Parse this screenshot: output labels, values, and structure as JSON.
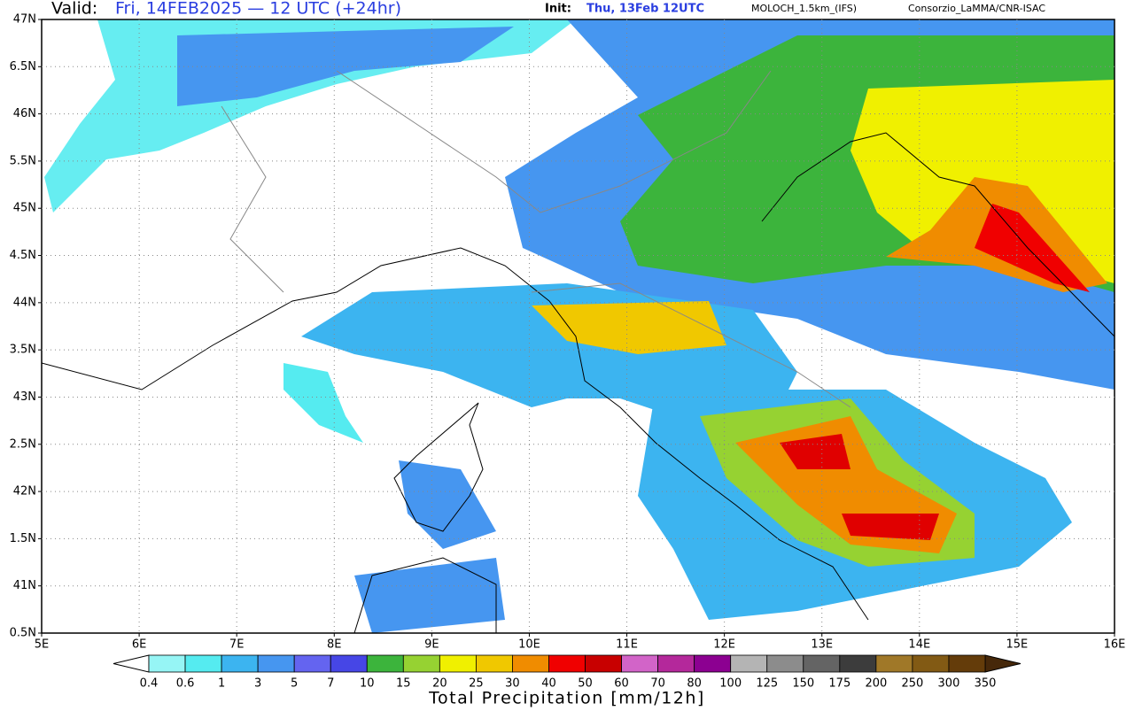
{
  "header": {
    "valid_label": "Valid:",
    "valid_time": "Fri, 14FEB2025 — 12 UTC (+24hr)",
    "init_label": "Init:",
    "init_time": "Thu, 13Feb 12UTC",
    "model": "MOLOCH_1.5km_(IFS)",
    "credit": "Consorzio_LaMMA/CNR-ISAC"
  },
  "map": {
    "lat_labels": [
      "47N",
      "6.5N",
      "46N",
      "5.5N",
      "45N",
      "4.5N",
      "44N",
      "3.5N",
      "43N",
      "2.5N",
      "42N",
      "1.5N",
      "41N",
      "0.5N"
    ],
    "lon_labels": [
      "5E",
      "6E",
      "7E",
      "8E",
      "9E",
      "10E",
      "11E",
      "12E",
      "13E",
      "14E",
      "15E",
      "16E"
    ]
  },
  "colorbar": {
    "title": "Total Precipitation [mm/12h]",
    "levels": [
      0.4,
      0.6,
      1,
      3,
      5,
      7,
      10,
      15,
      20,
      25,
      30,
      40,
      50,
      60,
      70,
      80,
      100,
      125,
      150,
      175,
      200,
      250,
      300,
      350
    ],
    "under_color": "#ffffff",
    "over_color": "#46280a",
    "colors": [
      "#96f5f5",
      "#55ebf0",
      "#3cb4f0",
      "#4696f0",
      "#6464f0",
      "#4646e6",
      "#3cb43c",
      "#96d232",
      "#f0f000",
      "#f0c800",
      "#f08c00",
      "#f00000",
      "#c80000",
      "#d264c8",
      "#b4289b",
      "#8c0091",
      "#b4b4b4",
      "#8c8c8c",
      "#646464",
      "#3c3c3c",
      "#a07828",
      "#825a14",
      "#643c0a"
    ]
  }
}
